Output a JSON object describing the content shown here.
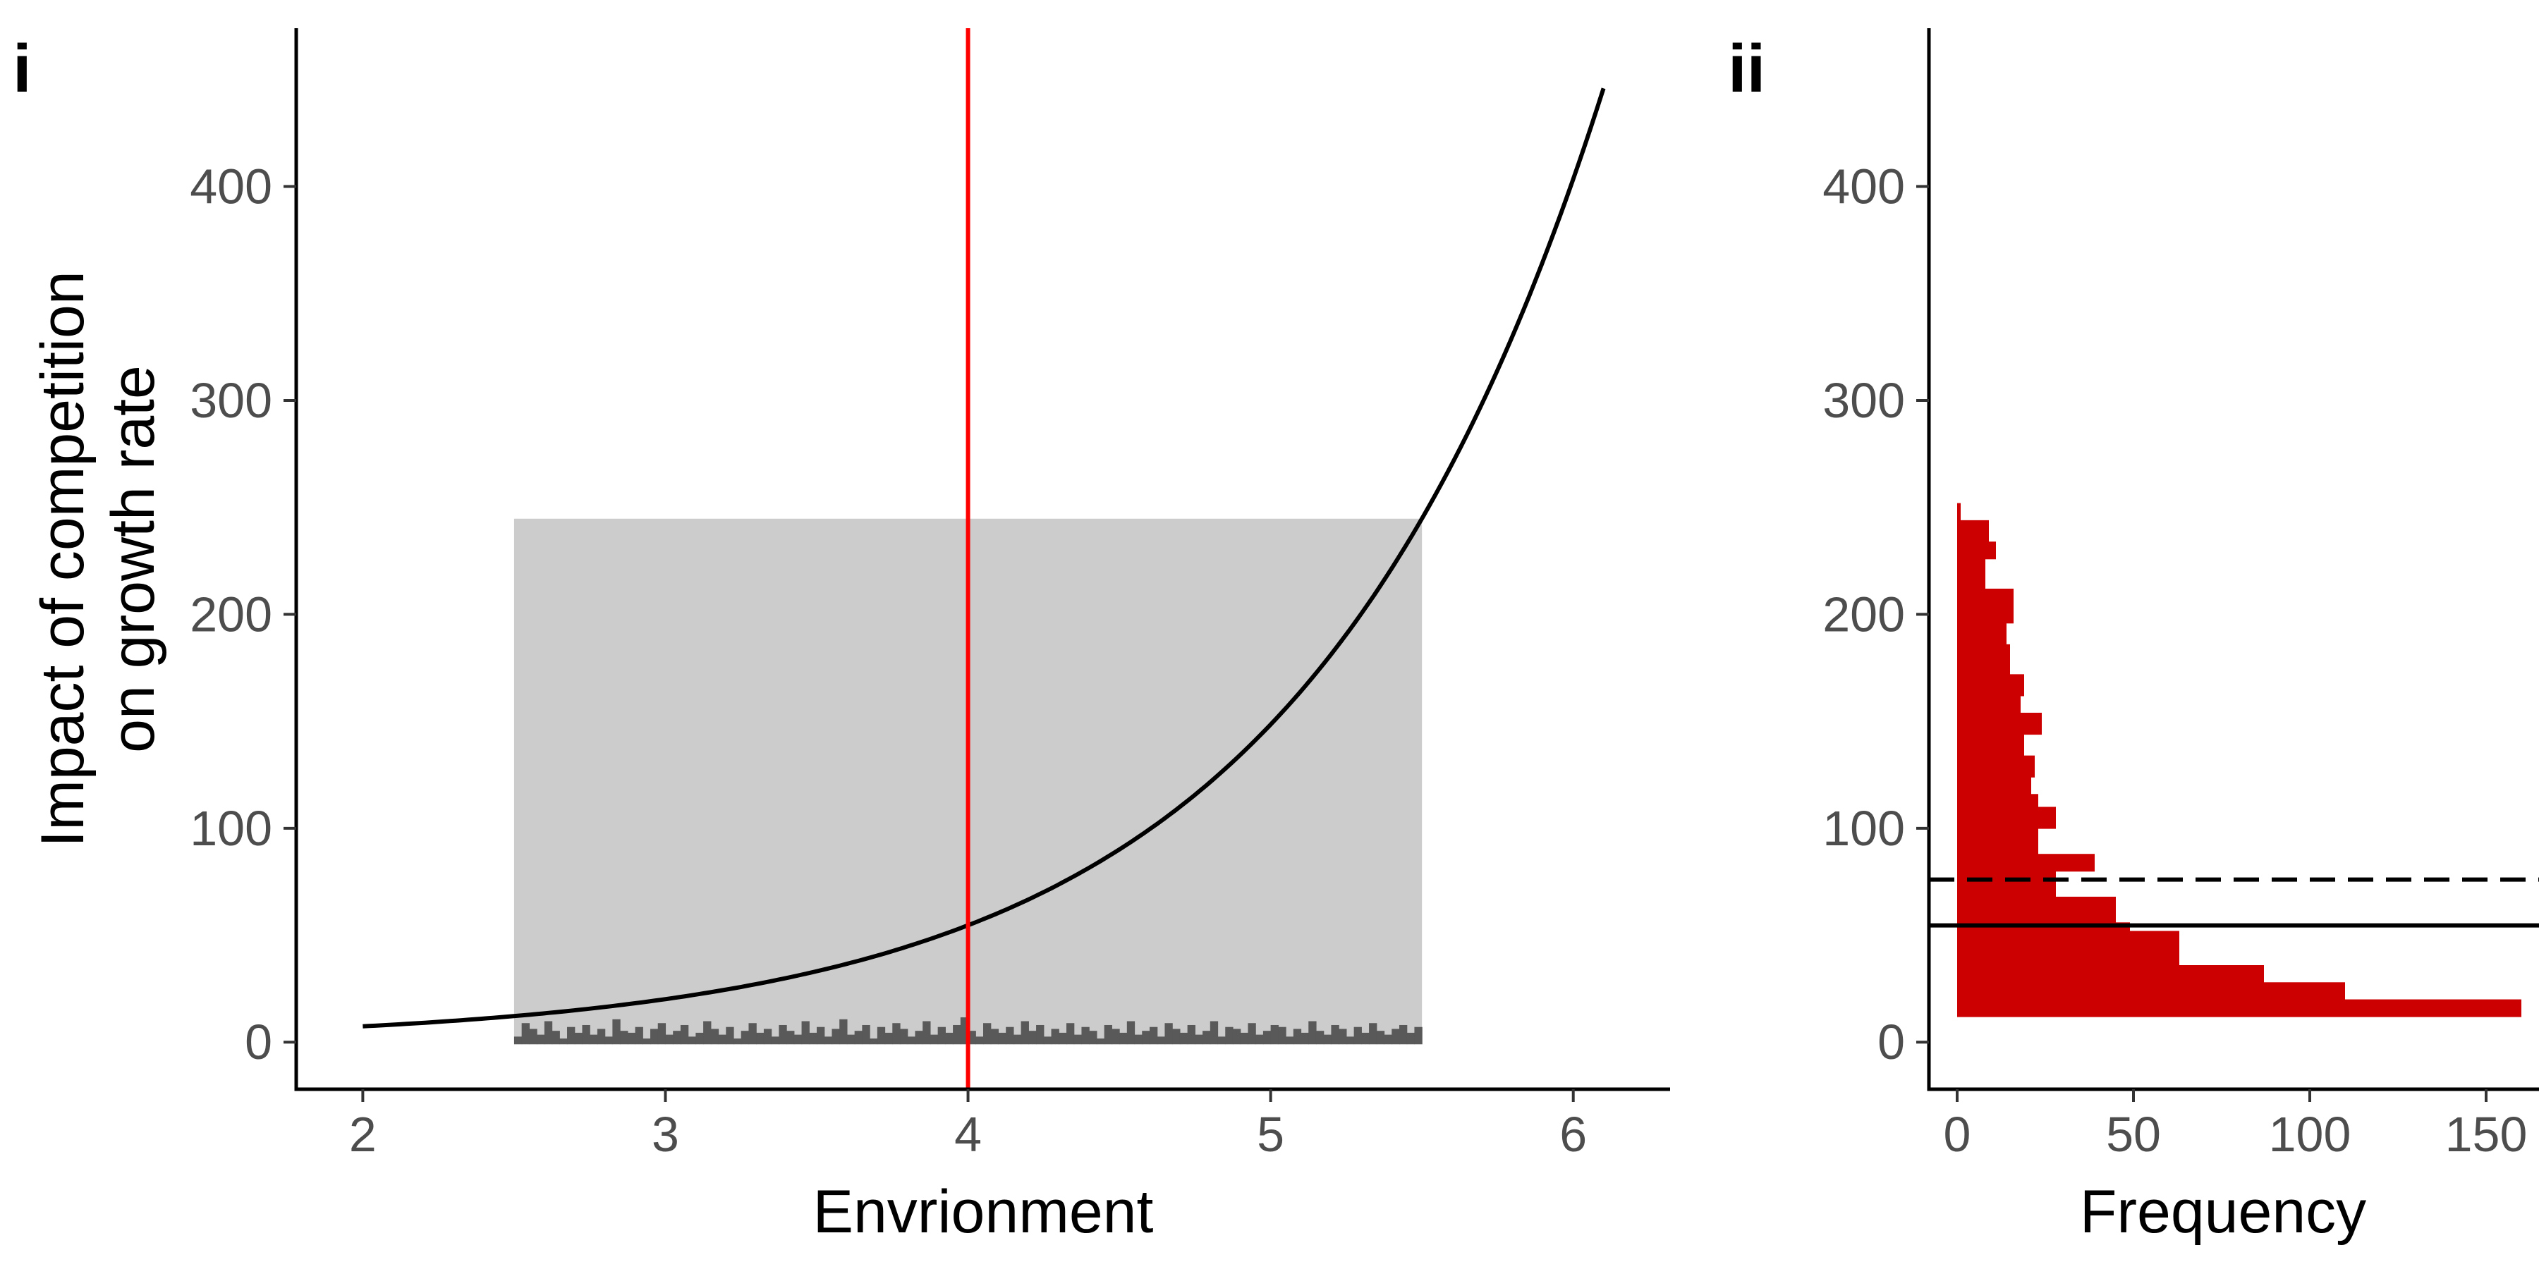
{
  "figure": {
    "tag_left": "i",
    "tag_right": "ii"
  },
  "colors": {
    "curve": "#000000",
    "vline": "#ff0000",
    "hist": "#cc0000",
    "shade": "#cccccc",
    "rug": "#595959",
    "axis": "#000000"
  },
  "chart_data": [
    {
      "type": "line",
      "panel": "i",
      "title": "",
      "xlabel": "Envrionment",
      "ylabel_lines": [
        "Impact of competition",
        "on growth rate"
      ],
      "xlim": [
        1.78,
        6.32
      ],
      "ylim": [
        -22,
        474
      ],
      "xticks": [
        "2",
        "3",
        "4",
        "5",
        "6"
      ],
      "yticks": [
        "0",
        "100",
        "200",
        "300",
        "400"
      ],
      "grid": false,
      "curve": {
        "x": [
          2.0,
          2.25,
          2.5,
          2.75,
          3.0,
          3.25,
          3.5,
          3.75,
          4.0,
          4.25,
          4.5,
          4.75,
          5.0,
          5.25,
          5.5,
          5.75,
          6.0,
          6.1
        ],
        "y": [
          7.4,
          9.5,
          12.2,
          15.6,
          20.1,
          25.8,
          33.1,
          42.5,
          54.6,
          70.1,
          90.0,
          115.6,
          148.4,
          190.6,
          244.7,
          314.2,
          403.4,
          445.9
        ]
      },
      "vline_x": 4.0,
      "shaded_region": {
        "x": [
          2.5,
          5.5
        ],
        "y": [
          0,
          244.7
        ]
      },
      "rug_histogram": {
        "range": [
          2.5,
          5.5
        ],
        "heights": [
          4,
          11,
          8,
          5,
          12,
          7,
          3,
          9,
          6,
          10,
          5,
          8,
          4,
          13,
          7,
          6,
          9,
          3,
          8,
          11,
          5,
          7,
          10,
          4,
          6,
          12,
          8,
          5,
          9,
          3,
          7,
          11,
          6,
          8,
          4,
          10,
          7,
          5,
          12,
          6,
          9,
          4,
          8,
          13,
          5,
          7,
          10,
          3,
          9,
          6,
          11,
          8,
          4,
          7,
          12,
          5,
          9,
          6,
          10,
          14,
          7,
          4,
          11,
          8,
          6,
          9,
          5,
          12,
          7,
          10,
          4,
          8,
          6,
          11,
          5,
          9,
          7,
          3,
          10,
          8,
          6,
          12,
          5,
          7,
          9,
          4,
          11,
          8,
          6,
          10,
          5,
          7,
          12,
          4,
          9,
          8,
          6,
          11,
          5,
          7,
          10,
          9,
          4,
          8,
          6,
          12,
          7,
          5,
          10,
          8,
          4,
          9,
          6,
          11,
          7,
          5,
          8,
          10,
          6,
          9
        ]
      }
    },
    {
      "type": "bar",
      "orientation": "horizontal",
      "panel": "ii",
      "title": "",
      "xlabel": "Frequency",
      "ylabel": "",
      "xlim": [
        -8,
        165
      ],
      "ylim": [
        -22,
        474
      ],
      "xticks": [
        "0",
        "50",
        "100",
        "150"
      ],
      "yticks": [
        "0",
        "100",
        "200",
        "300",
        "400"
      ],
      "grid": false,
      "bins": [
        {
          "y0": 12,
          "y1": 20,
          "count": 160
        },
        {
          "y0": 20,
          "y1": 28,
          "count": 110
        },
        {
          "y0": 28,
          "y1": 36,
          "count": 87
        },
        {
          "y0": 36,
          "y1": 52,
          "count": 63
        },
        {
          "y0": 52,
          "y1": 56,
          "count": 49
        },
        {
          "y0": 56,
          "y1": 68,
          "count": 45
        },
        {
          "y0": 68,
          "y1": 80,
          "count": 28
        },
        {
          "y0": 80,
          "y1": 88,
          "count": 39
        },
        {
          "y0": 88,
          "y1": 100,
          "count": 23
        },
        {
          "y0": 100,
          "y1": 110,
          "count": 28
        },
        {
          "y0": 110,
          "y1": 116,
          "count": 23
        },
        {
          "y0": 116,
          "y1": 124,
          "count": 21
        },
        {
          "y0": 124,
          "y1": 134,
          "count": 22
        },
        {
          "y0": 134,
          "y1": 144,
          "count": 19
        },
        {
          "y0": 144,
          "y1": 154,
          "count": 24
        },
        {
          "y0": 154,
          "y1": 162,
          "count": 18
        },
        {
          "y0": 162,
          "y1": 172,
          "count": 19
        },
        {
          "y0": 172,
          "y1": 186,
          "count": 15
        },
        {
          "y0": 186,
          "y1": 196,
          "count": 14
        },
        {
          "y0": 196,
          "y1": 210,
          "count": 16
        },
        {
          "y0": 210,
          "y1": 212,
          "count": 16
        },
        {
          "y0": 212,
          "y1": 226,
          "count": 8
        },
        {
          "y0": 226,
          "y1": 234,
          "count": 11
        },
        {
          "y0": 234,
          "y1": 244,
          "count": 9
        },
        {
          "y0": 244,
          "y1": 252,
          "count": 1
        }
      ],
      "hlines": [
        {
          "y": 54.6,
          "style": "solid"
        },
        {
          "y": 76,
          "style": "dashed"
        }
      ]
    }
  ]
}
